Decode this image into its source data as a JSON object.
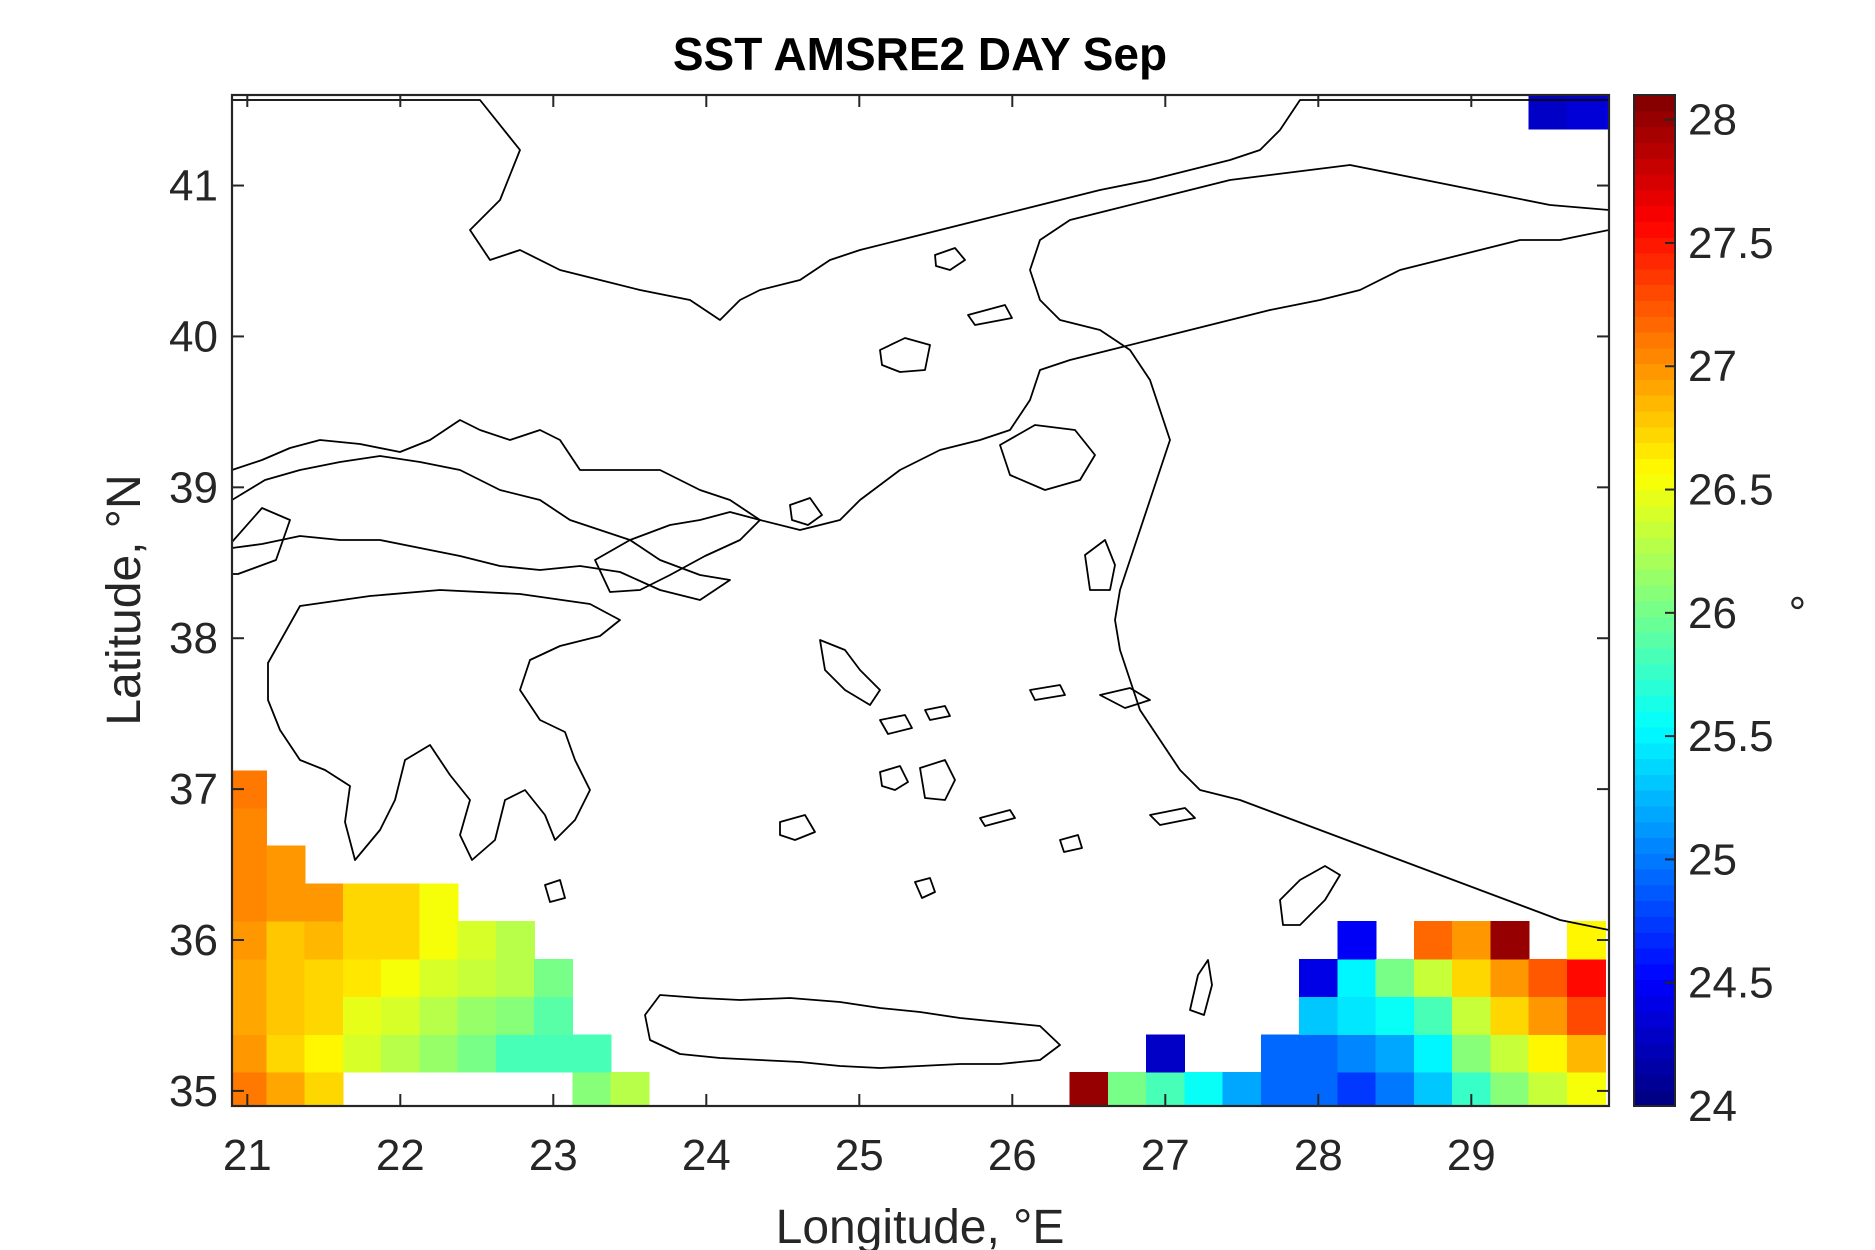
{
  "chart_data": {
    "type": "heatmap",
    "title": "SST AMSRE2 DAY Sep",
    "xlabel": "Longitude, °E",
    "ylabel": "Latitude, °N",
    "xlim": [
      20.9,
      29.9
    ],
    "ylim": [
      34.9,
      41.6
    ],
    "xticks": [
      21,
      22,
      23,
      24,
      25,
      26,
      27,
      28,
      29
    ],
    "yticks": [
      35,
      36,
      37,
      38,
      39,
      40,
      41
    ],
    "colorbar": {
      "label": "°",
      "range": [
        24,
        28.1
      ],
      "ticks": [
        24,
        24.5,
        25,
        25.5,
        26,
        26.5,
        27,
        27.5,
        28
      ],
      "colormap": "jet",
      "levels": 64
    },
    "grid": false,
    "cell_size_deg": 0.25,
    "cells": [
      {
        "lon": 21.0,
        "lat": 35.0,
        "v": 27.1
      },
      {
        "lon": 21.0,
        "lat": 35.25,
        "v": 26.95
      },
      {
        "lon": 21.0,
        "lat": 35.5,
        "v": 26.9
      },
      {
        "lon": 21.0,
        "lat": 35.75,
        "v": 26.9
      },
      {
        "lon": 21.0,
        "lat": 36.0,
        "v": 27.0
      },
      {
        "lon": 21.0,
        "lat": 36.25,
        "v": 27.05
      },
      {
        "lon": 21.0,
        "lat": 36.5,
        "v": 27.05
      },
      {
        "lon": 21.0,
        "lat": 36.75,
        "v": 27.05
      },
      {
        "lon": 21.0,
        "lat": 37.0,
        "v": 27.1
      },
      {
        "lon": 21.25,
        "lat": 35.0,
        "v": 26.9
      },
      {
        "lon": 21.25,
        "lat": 35.25,
        "v": 26.75
      },
      {
        "lon": 21.25,
        "lat": 35.5,
        "v": 26.8
      },
      {
        "lon": 21.25,
        "lat": 35.75,
        "v": 26.8
      },
      {
        "lon": 21.25,
        "lat": 36.0,
        "v": 26.8
      },
      {
        "lon": 21.25,
        "lat": 36.25,
        "v": 27.0
      },
      {
        "lon": 21.25,
        "lat": 36.5,
        "v": 27.0
      },
      {
        "lon": 21.5,
        "lat": 35.0,
        "v": 26.7
      },
      {
        "lon": 21.5,
        "lat": 35.25,
        "v": 26.6
      },
      {
        "lon": 21.5,
        "lat": 35.5,
        "v": 26.7
      },
      {
        "lon": 21.5,
        "lat": 35.75,
        "v": 26.75
      },
      {
        "lon": 21.5,
        "lat": 36.0,
        "v": 26.85
      },
      {
        "lon": 21.5,
        "lat": 36.25,
        "v": 26.95
      },
      {
        "lon": 21.75,
        "lat": 35.25,
        "v": 26.4
      },
      {
        "lon": 21.75,
        "lat": 35.5,
        "v": 26.45
      },
      {
        "lon": 21.75,
        "lat": 35.75,
        "v": 26.65
      },
      {
        "lon": 21.75,
        "lat": 36.0,
        "v": 26.75
      },
      {
        "lon": 21.75,
        "lat": 36.25,
        "v": 26.75
      },
      {
        "lon": 22.0,
        "lat": 35.25,
        "v": 26.3
      },
      {
        "lon": 22.0,
        "lat": 35.5,
        "v": 26.4
      },
      {
        "lon": 22.0,
        "lat": 35.75,
        "v": 26.55
      },
      {
        "lon": 22.0,
        "lat": 36.0,
        "v": 26.7
      },
      {
        "lon": 22.0,
        "lat": 36.25,
        "v": 26.7
      },
      {
        "lon": 22.25,
        "lat": 35.25,
        "v": 26.15
      },
      {
        "lon": 22.25,
        "lat": 35.5,
        "v": 26.3
      },
      {
        "lon": 22.25,
        "lat": 35.75,
        "v": 26.4
      },
      {
        "lon": 22.25,
        "lat": 36.0,
        "v": 26.5
      },
      {
        "lon": 22.25,
        "lat": 36.25,
        "v": 26.5
      },
      {
        "lon": 22.5,
        "lat": 35.25,
        "v": 26.0
      },
      {
        "lon": 22.5,
        "lat": 35.5,
        "v": 26.15
      },
      {
        "lon": 22.5,
        "lat": 35.75,
        "v": 26.35
      },
      {
        "lon": 22.5,
        "lat": 36.0,
        "v": 26.4
      },
      {
        "lon": 22.75,
        "lat": 35.25,
        "v": 25.85
      },
      {
        "lon": 22.75,
        "lat": 35.5,
        "v": 26.1
      },
      {
        "lon": 22.75,
        "lat": 35.75,
        "v": 26.25
      },
      {
        "lon": 22.75,
        "lat": 36.0,
        "v": 26.3
      },
      {
        "lon": 23.0,
        "lat": 35.25,
        "v": 25.8
      },
      {
        "lon": 23.0,
        "lat": 35.5,
        "v": 25.9
      },
      {
        "lon": 23.0,
        "lat": 35.75,
        "v": 26.0
      },
      {
        "lon": 23.25,
        "lat": 35.0,
        "v": 26.05
      },
      {
        "lon": 23.25,
        "lat": 35.25,
        "v": 25.85
      },
      {
        "lon": 23.5,
        "lat": 35.0,
        "v": 26.25
      },
      {
        "lon": 26.5,
        "lat": 35.0,
        "v": 28.0
      },
      {
        "lon": 26.75,
        "lat": 35.0,
        "v": 26.0
      },
      {
        "lon": 27.0,
        "lat": 35.0,
        "v": 25.8
      },
      {
        "lon": 27.0,
        "lat": 35.25,
        "v": 24.3
      },
      {
        "lon": 27.25,
        "lat": 35.0,
        "v": 25.55
      },
      {
        "lon": 27.5,
        "lat": 35.0,
        "v": 25.2
      },
      {
        "lon": 27.75,
        "lat": 35.0,
        "v": 24.95
      },
      {
        "lon": 27.75,
        "lat": 35.25,
        "v": 24.95
      },
      {
        "lon": 28.0,
        "lat": 35.0,
        "v": 24.9
      },
      {
        "lon": 28.0,
        "lat": 35.25,
        "v": 24.95
      },
      {
        "lon": 28.0,
        "lat": 35.5,
        "v": 25.3
      },
      {
        "lon": 28.0,
        "lat": 35.75,
        "v": 24.4
      },
      {
        "lon": 28.25,
        "lat": 35.0,
        "v": 24.75
      },
      {
        "lon": 28.25,
        "lat": 35.25,
        "v": 25.05
      },
      {
        "lon": 28.25,
        "lat": 35.5,
        "v": 25.45
      },
      {
        "lon": 28.25,
        "lat": 35.75,
        "v": 25.5
      },
      {
        "lon": 28.25,
        "lat": 36.0,
        "v": 24.45
      },
      {
        "lon": 28.5,
        "lat": 35.0,
        "v": 25.0
      },
      {
        "lon": 28.5,
        "lat": 35.25,
        "v": 25.2
      },
      {
        "lon": 28.5,
        "lat": 35.5,
        "v": 25.6
      },
      {
        "lon": 28.5,
        "lat": 35.75,
        "v": 26.0
      },
      {
        "lon": 28.75,
        "lat": 35.0,
        "v": 25.3
      },
      {
        "lon": 28.75,
        "lat": 35.25,
        "v": 25.5
      },
      {
        "lon": 28.75,
        "lat": 35.5,
        "v": 25.85
      },
      {
        "lon": 28.75,
        "lat": 35.75,
        "v": 26.35
      },
      {
        "lon": 28.75,
        "lat": 36.0,
        "v": 27.2
      },
      {
        "lon": 29.0,
        "lat": 35.0,
        "v": 25.75
      },
      {
        "lon": 29.0,
        "lat": 35.25,
        "v": 26.05
      },
      {
        "lon": 29.0,
        "lat": 35.5,
        "v": 26.35
      },
      {
        "lon": 29.0,
        "lat": 35.75,
        "v": 26.75
      },
      {
        "lon": 29.0,
        "lat": 36.0,
        "v": 26.95
      },
      {
        "lon": 29.25,
        "lat": 35.0,
        "v": 26.1
      },
      {
        "lon": 29.25,
        "lat": 35.25,
        "v": 26.35
      },
      {
        "lon": 29.25,
        "lat": 35.5,
        "v": 26.7
      },
      {
        "lon": 29.25,
        "lat": 35.75,
        "v": 27.0
      },
      {
        "lon": 29.25,
        "lat": 36.0,
        "v": 28.0
      },
      {
        "lon": 29.5,
        "lat": 35.0,
        "v": 26.35
      },
      {
        "lon": 29.5,
        "lat": 35.25,
        "v": 26.6
      },
      {
        "lon": 29.5,
        "lat": 35.5,
        "v": 27.0
      },
      {
        "lon": 29.5,
        "lat": 35.75,
        "v": 27.25
      },
      {
        "lon": 29.75,
        "lat": 35.0,
        "v": 26.5
      },
      {
        "lon": 29.75,
        "lat": 35.25,
        "v": 26.85
      },
      {
        "lon": 29.75,
        "lat": 35.5,
        "v": 27.3
      },
      {
        "lon": 29.75,
        "lat": 35.75,
        "v": 27.55
      },
      {
        "lon": 29.75,
        "lat": 36.0,
        "v": 26.6
      },
      {
        "lon": 29.5,
        "lat": 41.5,
        "v": 24.3
      },
      {
        "lon": 29.75,
        "lat": 41.5,
        "v": 24.35
      },
      {
        "lon": 30.0,
        "lat": 41.5,
        "v": 24.4
      }
    ]
  }
}
